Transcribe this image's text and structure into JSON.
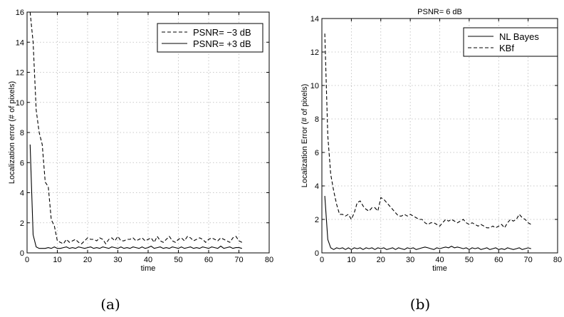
{
  "chart_data": [
    {
      "type": "line",
      "panel_id": "a",
      "caption": "(a)",
      "title": "",
      "xlabel": "time",
      "ylabel": "Localization error (# of pixels)",
      "xlim": [
        0,
        80
      ],
      "ylim": [
        0,
        16
      ],
      "xticks": [
        0,
        10,
        20,
        30,
        40,
        50,
        60,
        70,
        80
      ],
      "yticks": [
        0,
        2,
        4,
        6,
        8,
        10,
        12,
        14,
        16
      ],
      "grid": true,
      "legend_position": "top-right",
      "series": [
        {
          "name": "PSNR= −3 dB",
          "style": "dashed",
          "x": [
            1,
            2,
            3,
            4,
            5,
            6,
            7,
            8,
            9,
            10,
            11,
            12,
            13,
            14,
            15,
            16,
            17,
            18,
            19,
            20,
            21,
            22,
            23,
            24,
            25,
            26,
            27,
            28,
            29,
            30,
            31,
            32,
            33,
            34,
            35,
            36,
            37,
            38,
            39,
            40,
            41,
            42,
            43,
            44,
            45,
            46,
            47,
            48,
            49,
            50,
            51,
            52,
            53,
            54,
            55,
            56,
            57,
            58,
            59,
            60,
            61,
            62,
            63,
            64,
            65,
            66,
            67,
            68,
            69,
            70,
            71
          ],
          "y": [
            16.0,
            14.0,
            9.5,
            8.0,
            7.2,
            4.7,
            4.4,
            2.2,
            1.8,
            0.8,
            0.7,
            0.6,
            0.9,
            0.7,
            0.8,
            0.9,
            0.7,
            0.6,
            0.8,
            1.0,
            0.9,
            0.9,
            0.8,
            1.0,
            0.9,
            0.6,
            0.9,
            1.0,
            0.8,
            1.1,
            0.8,
            0.8,
            0.9,
            0.9,
            1.0,
            0.8,
            0.9,
            1.0,
            0.8,
            0.9,
            1.0,
            0.7,
            1.1,
            0.8,
            0.7,
            0.9,
            1.1,
            0.8,
            0.7,
            0.9,
            1.0,
            0.8,
            1.1,
            1.0,
            0.8,
            0.9,
            1.0,
            0.9,
            0.7,
            0.9,
            1.0,
            0.9,
            0.8,
            1.0,
            0.9,
            0.8,
            0.7,
            1.0,
            1.1,
            0.8,
            0.7
          ]
        },
        {
          "name": "PSNR= +3 dB",
          "style": "solid",
          "x": [
            1,
            2,
            3,
            4,
            5,
            6,
            7,
            8,
            9,
            10,
            11,
            12,
            13,
            14,
            15,
            16,
            17,
            18,
            19,
            20,
            21,
            22,
            23,
            24,
            25,
            26,
            27,
            28,
            29,
            30,
            31,
            32,
            33,
            34,
            35,
            36,
            37,
            38,
            39,
            40,
            41,
            42,
            43,
            44,
            45,
            46,
            47,
            48,
            49,
            50,
            51,
            52,
            53,
            54,
            55,
            56,
            57,
            58,
            59,
            60,
            61,
            62,
            63,
            64,
            65,
            66,
            67,
            68,
            69,
            70,
            71
          ],
          "y": [
            7.2,
            1.2,
            0.4,
            0.3,
            0.3,
            0.3,
            0.35,
            0.3,
            0.4,
            0.3,
            0.3,
            0.35,
            0.4,
            0.3,
            0.35,
            0.3,
            0.4,
            0.35,
            0.3,
            0.35,
            0.4,
            0.3,
            0.35,
            0.3,
            0.4,
            0.35,
            0.3,
            0.4,
            0.35,
            0.3,
            0.4,
            0.3,
            0.35,
            0.3,
            0.4,
            0.35,
            0.3,
            0.4,
            0.3,
            0.35,
            0.45,
            0.3,
            0.35,
            0.4,
            0.3,
            0.35,
            0.3,
            0.4,
            0.35,
            0.3,
            0.4,
            0.3,
            0.35,
            0.4,
            0.3,
            0.35,
            0.3,
            0.4,
            0.35,
            0.3,
            0.4,
            0.35,
            0.3,
            0.45,
            0.3,
            0.35,
            0.4,
            0.3,
            0.35,
            0.35,
            0.3
          ]
        }
      ]
    },
    {
      "type": "line",
      "panel_id": "b",
      "caption": "(b)",
      "title": "PSNR= 6 dB",
      "xlabel": "time",
      "ylabel": "Localization Error (# of pixels)",
      "xlim": [
        0,
        80
      ],
      "ylim": [
        0,
        14
      ],
      "xticks": [
        0,
        10,
        20,
        30,
        40,
        50,
        60,
        70,
        80
      ],
      "yticks": [
        0,
        2,
        4,
        6,
        8,
        10,
        12,
        14
      ],
      "grid": true,
      "legend_position": "top-right",
      "series": [
        {
          "name": "NL Bayes",
          "style": "solid",
          "x": [
            1,
            2,
            3,
            4,
            5,
            6,
            7,
            8,
            9,
            10,
            11,
            12,
            13,
            14,
            15,
            16,
            17,
            18,
            19,
            20,
            21,
            22,
            23,
            24,
            25,
            26,
            27,
            28,
            29,
            30,
            31,
            32,
            33,
            34,
            35,
            36,
            37,
            38,
            39,
            40,
            41,
            42,
            43,
            44,
            45,
            46,
            47,
            48,
            49,
            50,
            51,
            52,
            53,
            54,
            55,
            56,
            57,
            58,
            59,
            60,
            61,
            62,
            63,
            64,
            65,
            66,
            67,
            68,
            69,
            70,
            71
          ],
          "y": [
            3.4,
            0.8,
            0.3,
            0.2,
            0.3,
            0.25,
            0.3,
            0.2,
            0.3,
            0.2,
            0.3,
            0.25,
            0.3,
            0.2,
            0.3,
            0.25,
            0.3,
            0.2,
            0.3,
            0.25,
            0.3,
            0.2,
            0.25,
            0.3,
            0.2,
            0.3,
            0.25,
            0.2,
            0.3,
            0.25,
            0.3,
            0.2,
            0.25,
            0.3,
            0.35,
            0.3,
            0.25,
            0.2,
            0.3,
            0.25,
            0.3,
            0.35,
            0.3,
            0.4,
            0.3,
            0.35,
            0.3,
            0.25,
            0.3,
            0.2,
            0.3,
            0.25,
            0.3,
            0.2,
            0.25,
            0.3,
            0.2,
            0.25,
            0.3,
            0.2,
            0.25,
            0.2,
            0.3,
            0.25,
            0.2,
            0.25,
            0.3,
            0.2,
            0.25,
            0.3,
            0.25
          ]
        },
        {
          "name": "KBf",
          "style": "dashed",
          "x": [
            1,
            2,
            3,
            4,
            5,
            6,
            7,
            8,
            9,
            10,
            11,
            12,
            13,
            14,
            15,
            16,
            17,
            18,
            19,
            20,
            21,
            22,
            23,
            24,
            25,
            26,
            27,
            28,
            29,
            30,
            31,
            32,
            33,
            34,
            35,
            36,
            37,
            38,
            39,
            40,
            41,
            42,
            43,
            44,
            45,
            46,
            47,
            48,
            49,
            50,
            51,
            52,
            53,
            54,
            55,
            56,
            57,
            58,
            59,
            60,
            61,
            62,
            63,
            64,
            65,
            66,
            67,
            68,
            69,
            70,
            71
          ],
          "y": [
            13.1,
            7.0,
            4.7,
            3.7,
            2.9,
            2.3,
            2.3,
            2.2,
            2.3,
            2.0,
            2.4,
            3.0,
            3.1,
            2.8,
            2.6,
            2.5,
            2.7,
            2.7,
            2.5,
            3.3,
            3.2,
            3.0,
            2.8,
            2.6,
            2.4,
            2.2,
            2.2,
            2.3,
            2.2,
            2.3,
            2.2,
            2.1,
            2.0,
            2.0,
            1.8,
            1.7,
            1.8,
            1.8,
            1.7,
            1.6,
            1.8,
            2.0,
            1.9,
            2.0,
            1.9,
            1.8,
            1.9,
            2.0,
            1.8,
            1.7,
            1.8,
            1.7,
            1.6,
            1.7,
            1.6,
            1.5,
            1.5,
            1.6,
            1.5,
            1.6,
            1.7,
            1.5,
            1.8,
            2.0,
            1.9,
            2.0,
            2.3,
            2.1,
            2.0,
            1.8,
            1.7
          ]
        }
      ]
    }
  ]
}
